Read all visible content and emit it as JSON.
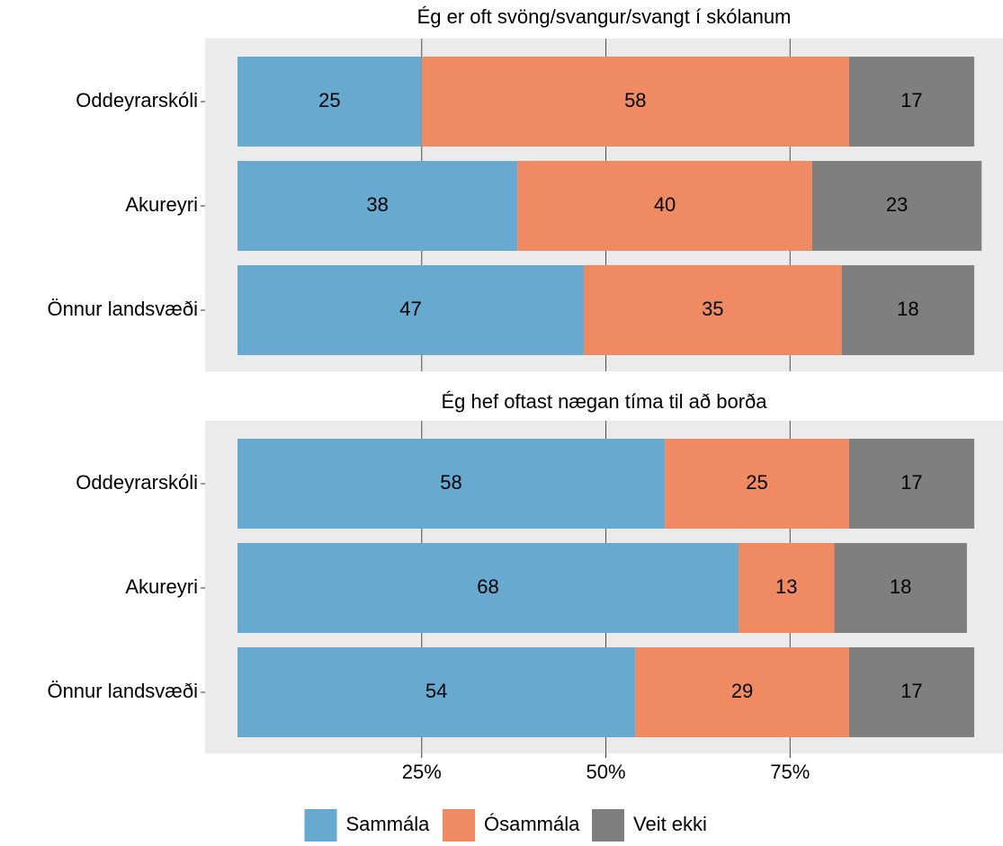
{
  "chart_data": [
    {
      "type": "bar",
      "orientation": "horizontal",
      "stacked": true,
      "title": "Ég er oft svöng/svangur/svangt í skólanum",
      "categories": [
        "Oddeyrarskóli",
        "Akureyri",
        "Önnur landsvæði"
      ],
      "series": [
        {
          "name": "Sammála",
          "color": "#67a9cf",
          "values": [
            25,
            38,
            47
          ]
        },
        {
          "name": "Ósammála",
          "color": "#ef8a62",
          "values": [
            58,
            40,
            35
          ]
        },
        {
          "name": "Veit ekki",
          "color": "#7f7f7f",
          "values": [
            17,
            23,
            18
          ]
        }
      ],
      "xlim": [
        -4.4,
        103.9
      ],
      "xticks": [
        {
          "value": 25,
          "label": "25%"
        },
        {
          "value": 50,
          "label": "50%"
        },
        {
          "value": 75,
          "label": "75%"
        }
      ],
      "grid": true
    },
    {
      "type": "bar",
      "orientation": "horizontal",
      "stacked": true,
      "title": "Ég hef oftast nægan tíma til að borða",
      "categories": [
        "Oddeyrarskóli",
        "Akureyri",
        "Önnur landsvæði"
      ],
      "series": [
        {
          "name": "Sammála",
          "color": "#67a9cf",
          "values": [
            58,
            68,
            54
          ]
        },
        {
          "name": "Ósammála",
          "color": "#ef8a62",
          "values": [
            25,
            13,
            29
          ]
        },
        {
          "name": "Veit ekki",
          "color": "#7f7f7f",
          "values": [
            17,
            18,
            17
          ]
        }
      ],
      "xlim": [
        -4.4,
        103.9
      ],
      "xticks": [
        {
          "value": 25,
          "label": "25%"
        },
        {
          "value": 50,
          "label": "50%"
        },
        {
          "value": 75,
          "label": "75%"
        }
      ],
      "grid": true
    }
  ]
}
